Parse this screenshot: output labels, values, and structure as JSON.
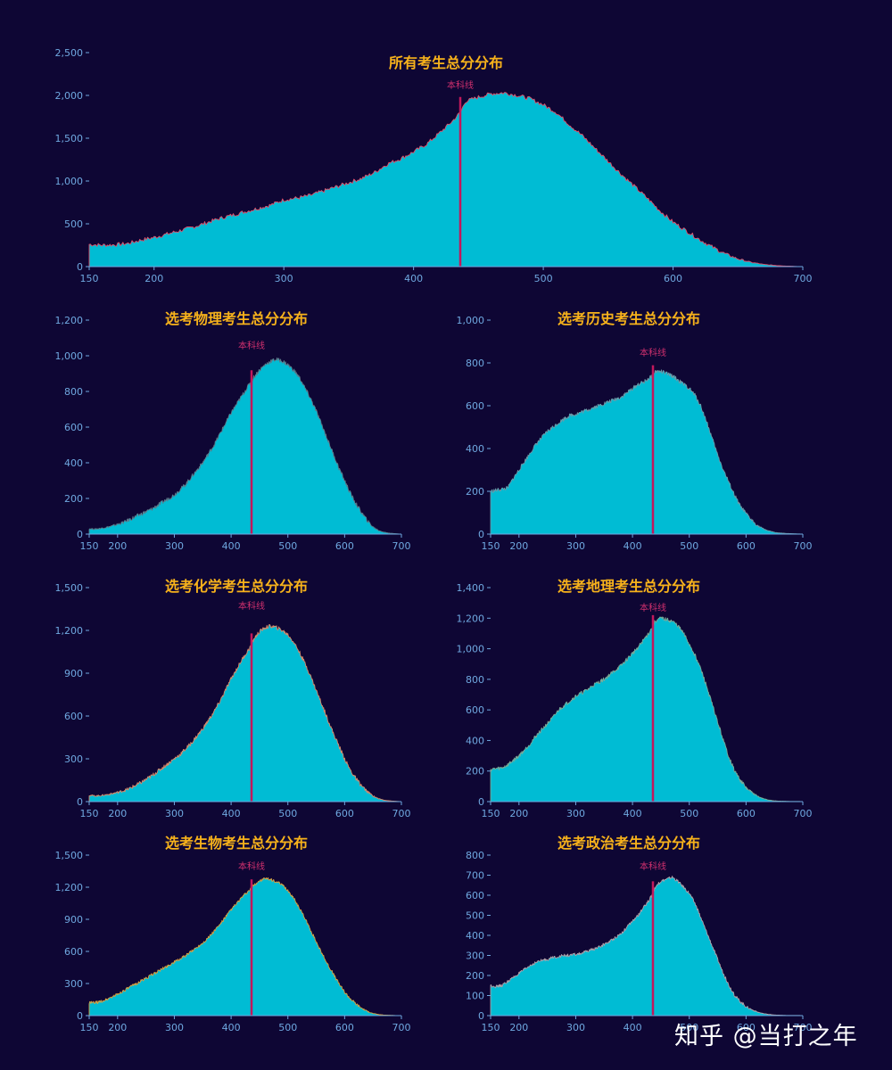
{
  "colors": {
    "background": "#0e0634",
    "bar_fill": "#00bcd4",
    "title": "#f7b21b",
    "axis_text": "#6fa8e0",
    "cut_line": "#c2185b",
    "cut_label": "#d0306e"
  },
  "watermark": "知乎 @当打之年",
  "chart_data": [
    {
      "id": "all",
      "type": "bar",
      "title": "所有考生总分分布",
      "cut_label": "本科线",
      "cut_score": 436,
      "edge_color": "#e0506a",
      "xlabel": "",
      "ylabel": "",
      "xlim": [
        150,
        700
      ],
      "x_ticks": [
        150,
        200,
        300,
        400,
        500,
        600,
        700
      ],
      "ylim": [
        0,
        2500
      ],
      "y_ticks": [
        0,
        500,
        1000,
        1500,
        2000,
        2500
      ],
      "y_tick_labels": [
        "0",
        "500",
        "1,000",
        "1,500",
        "2,000",
        "2,500"
      ],
      "grid": false,
      "x": [
        150,
        160,
        170,
        180,
        190,
        200,
        210,
        220,
        230,
        240,
        250,
        260,
        270,
        280,
        290,
        300,
        310,
        320,
        330,
        340,
        350,
        360,
        370,
        380,
        390,
        400,
        410,
        420,
        430,
        436,
        440,
        450,
        460,
        470,
        480,
        490,
        500,
        510,
        520,
        530,
        540,
        550,
        560,
        570,
        580,
        590,
        600,
        610,
        620,
        630,
        640,
        650,
        660,
        670,
        680,
        690,
        695
      ],
      "values": [
        260,
        250,
        255,
        270,
        310,
        340,
        380,
        420,
        460,
        510,
        560,
        600,
        640,
        680,
        720,
        780,
        800,
        830,
        880,
        930,
        980,
        1030,
        1100,
        1200,
        1260,
        1340,
        1430,
        1560,
        1700,
        1800,
        1930,
        1980,
        2020,
        2030,
        2000,
        1960,
        1890,
        1800,
        1660,
        1530,
        1380,
        1230,
        1080,
        940,
        800,
        650,
        520,
        420,
        320,
        230,
        150,
        90,
        50,
        25,
        12,
        5,
        2
      ]
    },
    {
      "id": "physics",
      "type": "bar",
      "title": "选考物理考生总分分布",
      "cut_label": "本科线",
      "cut_score": 436,
      "edge_color": "#5a7a8a",
      "xlim": [
        150,
        700
      ],
      "x_ticks": [
        150,
        200,
        300,
        400,
        500,
        600,
        700
      ],
      "ylim": [
        0,
        1200
      ],
      "y_ticks": [
        0,
        200,
        400,
        600,
        800,
        1000,
        1200
      ],
      "y_tick_labels": [
        "0",
        "200",
        "400",
        "600",
        "800",
        "1,000",
        "1,200"
      ],
      "grid": false,
      "x": [
        150,
        160,
        170,
        180,
        190,
        200,
        210,
        220,
        230,
        240,
        250,
        260,
        270,
        280,
        290,
        300,
        310,
        320,
        330,
        340,
        350,
        360,
        370,
        380,
        390,
        400,
        410,
        420,
        430,
        436,
        440,
        450,
        460,
        470,
        480,
        490,
        500,
        510,
        520,
        530,
        540,
        550,
        560,
        570,
        580,
        590,
        600,
        610,
        620,
        630,
        640,
        650,
        660,
        670,
        680,
        690,
        695
      ],
      "values": [
        30,
        28,
        32,
        38,
        45,
        55,
        65,
        80,
        95,
        110,
        125,
        140,
        160,
        180,
        200,
        220,
        250,
        280,
        320,
        360,
        400,
        450,
        500,
        560,
        620,
        680,
        730,
        780,
        830,
        860,
        880,
        920,
        950,
        970,
        980,
        970,
        950,
        920,
        880,
        820,
        760,
        690,
        610,
        530,
        450,
        370,
        300,
        230,
        170,
        120,
        75,
        40,
        20,
        10,
        5,
        2,
        1
      ]
    },
    {
      "id": "history",
      "type": "bar",
      "title": "选考历史考生总分分布",
      "cut_label": "本科线",
      "cut_score": 436,
      "edge_color": "#6a9aa8",
      "xlim": [
        150,
        700
      ],
      "x_ticks": [
        150,
        200,
        300,
        400,
        500,
        600,
        700
      ],
      "ylim": [
        0,
        1000
      ],
      "y_ticks": [
        0,
        200,
        400,
        600,
        800,
        1000
      ],
      "y_tick_labels": [
        "0",
        "200",
        "400",
        "600",
        "800",
        "1,000"
      ],
      "grid": false,
      "x": [
        150,
        160,
        170,
        180,
        190,
        200,
        210,
        220,
        230,
        240,
        250,
        260,
        270,
        280,
        290,
        300,
        310,
        320,
        330,
        340,
        350,
        360,
        370,
        380,
        390,
        400,
        410,
        420,
        430,
        436,
        440,
        450,
        460,
        470,
        480,
        490,
        500,
        510,
        520,
        530,
        540,
        550,
        560,
        570,
        580,
        590,
        600,
        610,
        620,
        630,
        640,
        650,
        660,
        670,
        680,
        690,
        695
      ],
      "values": [
        200,
        205,
        210,
        215,
        260,
        300,
        340,
        380,
        420,
        450,
        480,
        500,
        520,
        540,
        555,
        560,
        570,
        580,
        590,
        600,
        610,
        620,
        630,
        640,
        660,
        680,
        700,
        710,
        730,
        740,
        760,
        760,
        750,
        740,
        720,
        700,
        680,
        650,
        600,
        530,
        450,
        370,
        300,
        240,
        180,
        130,
        95,
        65,
        40,
        25,
        15,
        8,
        5,
        3,
        2,
        1,
        1
      ]
    },
    {
      "id": "chemistry",
      "type": "bar",
      "title": "选考化学考生总分分布",
      "cut_label": "本科线",
      "cut_score": 436,
      "edge_color": "#d88a6a",
      "xlim": [
        150,
        700
      ],
      "x_ticks": [
        150,
        200,
        300,
        400,
        500,
        600,
        700
      ],
      "ylim": [
        0,
        1500
      ],
      "y_ticks": [
        0,
        300,
        600,
        900,
        1200,
        1500
      ],
      "y_tick_labels": [
        "0",
        "300",
        "600",
        "900",
        "1,200",
        "1,500"
      ],
      "grid": false,
      "x": [
        150,
        160,
        170,
        180,
        190,
        200,
        210,
        220,
        230,
        240,
        250,
        260,
        270,
        280,
        290,
        300,
        310,
        320,
        330,
        340,
        350,
        360,
        370,
        380,
        390,
        400,
        410,
        420,
        430,
        436,
        440,
        450,
        460,
        470,
        480,
        490,
        500,
        510,
        520,
        530,
        540,
        550,
        560,
        570,
        580,
        590,
        600,
        610,
        620,
        630,
        640,
        650,
        660,
        670,
        680,
        690,
        695
      ],
      "values": [
        45,
        40,
        42,
        48,
        55,
        65,
        75,
        90,
        110,
        130,
        155,
        180,
        210,
        240,
        270,
        300,
        330,
        370,
        410,
        460,
        510,
        570,
        630,
        700,
        780,
        860,
        930,
        1000,
        1060,
        1100,
        1140,
        1190,
        1220,
        1230,
        1220,
        1200,
        1170,
        1120,
        1050,
        970,
        880,
        780,
        680,
        580,
        480,
        390,
        300,
        220,
        160,
        110,
        70,
        40,
        20,
        10,
        5,
        2,
        1
      ]
    },
    {
      "id": "geography",
      "type": "bar",
      "title": "选考地理考生总分分布",
      "cut_label": "本科线",
      "cut_score": 436,
      "edge_color": "#7aaa98",
      "xlim": [
        150,
        700
      ],
      "x_ticks": [
        150,
        200,
        300,
        400,
        500,
        600,
        700
      ],
      "ylim": [
        0,
        1400
      ],
      "y_ticks": [
        0,
        200,
        400,
        600,
        800,
        1000,
        1200,
        1400
      ],
      "y_tick_labels": [
        "0",
        "200",
        "400",
        "600",
        "800",
        "1,000",
        "1,200",
        "1,400"
      ],
      "grid": false,
      "x": [
        150,
        160,
        170,
        180,
        190,
        200,
        210,
        220,
        230,
        240,
        250,
        260,
        270,
        280,
        290,
        300,
        310,
        320,
        330,
        340,
        350,
        360,
        370,
        380,
        390,
        400,
        410,
        420,
        430,
        436,
        440,
        450,
        460,
        470,
        480,
        490,
        500,
        510,
        520,
        530,
        540,
        550,
        560,
        570,
        580,
        590,
        600,
        610,
        620,
        630,
        640,
        650,
        660,
        670,
        680,
        690,
        695
      ],
      "values": [
        210,
        215,
        220,
        240,
        270,
        300,
        340,
        380,
        430,
        470,
        510,
        550,
        600,
        630,
        660,
        690,
        710,
        730,
        760,
        780,
        800,
        830,
        860,
        890,
        930,
        970,
        1010,
        1060,
        1110,
        1150,
        1180,
        1200,
        1190,
        1180,
        1150,
        1100,
        1030,
        960,
        870,
        760,
        640,
        520,
        400,
        290,
        200,
        140,
        90,
        60,
        35,
        20,
        10,
        5,
        3,
        2,
        1,
        1,
        1
      ]
    },
    {
      "id": "biology",
      "type": "bar",
      "title": "选考生物考生总分分布",
      "cut_label": "本科线",
      "cut_score": 436,
      "edge_color": "#d8a040",
      "xlim": [
        150,
        700
      ],
      "x_ticks": [
        150,
        200,
        300,
        400,
        500,
        600,
        700
      ],
      "ylim": [
        0,
        1500
      ],
      "y_ticks": [
        0,
        300,
        600,
        900,
        1200,
        1500
      ],
      "y_tick_labels": [
        "0",
        "300",
        "600",
        "900",
        "1,200",
        "1,500"
      ],
      "grid": false,
      "x": [
        150,
        160,
        170,
        180,
        190,
        200,
        210,
        220,
        230,
        240,
        250,
        260,
        270,
        280,
        290,
        300,
        310,
        320,
        330,
        340,
        350,
        360,
        370,
        380,
        390,
        400,
        410,
        420,
        430,
        436,
        440,
        450,
        460,
        470,
        480,
        490,
        500,
        510,
        520,
        530,
        540,
        550,
        560,
        570,
        580,
        590,
        600,
        610,
        620,
        630,
        640,
        650,
        660,
        670,
        680,
        690,
        695
      ],
      "values": [
        120,
        120,
        130,
        150,
        175,
        200,
        230,
        260,
        290,
        320,
        350,
        380,
        410,
        440,
        470,
        500,
        530,
        560,
        600,
        640,
        680,
        730,
        790,
        850,
        920,
        990,
        1050,
        1110,
        1160,
        1190,
        1220,
        1260,
        1280,
        1270,
        1250,
        1220,
        1170,
        1100,
        1010,
        910,
        800,
        690,
        580,
        480,
        390,
        300,
        220,
        160,
        110,
        70,
        40,
        20,
        10,
        5,
        3,
        1,
        1
      ]
    },
    {
      "id": "politics",
      "type": "bar",
      "title": "选考政治考生总分分布",
      "cut_label": "本科线",
      "cut_score": 436,
      "edge_color": "#b0a0a8",
      "xlim": [
        150,
        700
      ],
      "x_ticks": [
        150,
        200,
        300,
        400,
        500,
        600,
        700
      ],
      "ylim": [
        0,
        800
      ],
      "y_ticks": [
        0,
        100,
        200,
        300,
        400,
        500,
        600,
        700,
        800
      ],
      "y_tick_labels": [
        "0",
        "100",
        "200",
        "300",
        "400",
        "500",
        "600",
        "700",
        "800"
      ],
      "grid": false,
      "x": [
        150,
        160,
        170,
        180,
        190,
        200,
        210,
        220,
        230,
        240,
        250,
        260,
        270,
        280,
        290,
        300,
        310,
        320,
        330,
        340,
        350,
        360,
        370,
        380,
        390,
        400,
        410,
        420,
        430,
        436,
        440,
        450,
        460,
        470,
        480,
        490,
        500,
        510,
        520,
        530,
        540,
        550,
        560,
        570,
        580,
        590,
        600,
        610,
        620,
        630,
        640,
        650,
        660,
        670,
        680,
        690,
        695
      ],
      "values": [
        150,
        145,
        150,
        170,
        190,
        210,
        230,
        250,
        265,
        275,
        280,
        290,
        295,
        300,
        300,
        305,
        310,
        320,
        330,
        340,
        355,
        370,
        390,
        410,
        440,
        470,
        500,
        540,
        580,
        610,
        640,
        670,
        680,
        690,
        670,
        640,
        610,
        560,
        490,
        420,
        350,
        280,
        210,
        150,
        100,
        70,
        45,
        30,
        18,
        10,
        6,
        3,
        2,
        1,
        1,
        1,
        1
      ]
    }
  ]
}
